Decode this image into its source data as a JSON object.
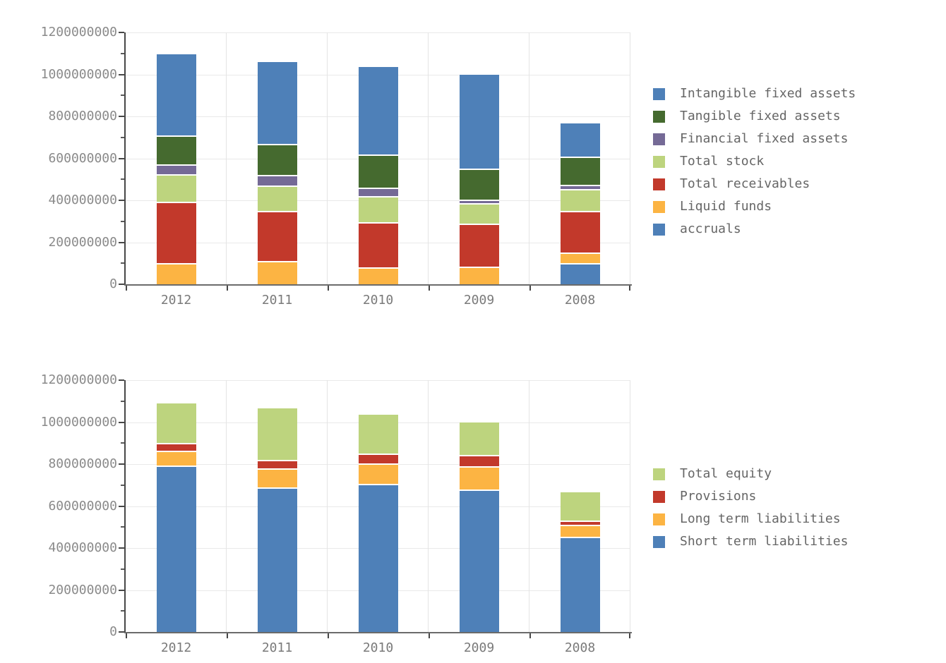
{
  "page": {
    "background": "#ffffff"
  },
  "colors": {
    "blue": "#4e80b8",
    "dark_green": "#456a2f",
    "purple": "#756a96",
    "light_green": "#bdd47e",
    "red": "#c2392b",
    "orange": "#fcb443",
    "grid": "#e9e9e9",
    "axis": "#474747",
    "tick_label": "#8a8a8a",
    "legend_text": "#666666"
  },
  "y_axis": {
    "min": 0,
    "max": 1200000000,
    "major_step": 200000000,
    "minor_step": 100000000,
    "tick_labels": [
      "1200000000",
      "1000000000",
      "800000000",
      "600000000",
      "400000000",
      "200000000",
      "0"
    ]
  },
  "chart_data": [
    {
      "type": "bar",
      "stacked": true,
      "title": "",
      "xlabel": "",
      "ylabel": "",
      "ylim": [
        0,
        1200000000
      ],
      "grid": true,
      "legend_position": "right",
      "categories": [
        "2012",
        "2011",
        "2010",
        "2009",
        "2008"
      ],
      "series": [
        {
          "name": "Intangible fixed assets",
          "color": "#4e80b8",
          "values": [
            385000000,
            390000000,
            415000000,
            450000000,
            155000000
          ]
        },
        {
          "name": "Tangible fixed assets",
          "color": "#456a2f",
          "values": [
            140000000,
            150000000,
            160000000,
            145000000,
            135000000
          ]
        },
        {
          "name": "Financial fixed assets",
          "color": "#756a96",
          "values": [
            45000000,
            50000000,
            40000000,
            20000000,
            20000000
          ]
        },
        {
          "name": "Total stock",
          "color": "#bdd47e",
          "values": [
            130000000,
            120000000,
            125000000,
            95000000,
            105000000
          ]
        },
        {
          "name": "Total receivables",
          "color": "#c2392b",
          "values": [
            295000000,
            240000000,
            215000000,
            205000000,
            200000000
          ]
        },
        {
          "name": "Liquid funds",
          "color": "#fcb443",
          "values": [
            100000000,
            110000000,
            80000000,
            85000000,
            50000000
          ]
        },
        {
          "name": "accruals",
          "color": "#4e80b8",
          "values": [
            0,
            0,
            0,
            0,
            100000000
          ]
        }
      ],
      "stack_note": "first series renders at top of stack; stacking bottom-to-top is reverse of series order"
    },
    {
      "type": "bar",
      "stacked": true,
      "title": "",
      "xlabel": "",
      "ylabel": "",
      "ylim": [
        0,
        1200000000
      ],
      "grid": true,
      "legend_position": "right",
      "categories": [
        "2012",
        "2011",
        "2010",
        "2009",
        "2008"
      ],
      "series": [
        {
          "name": "Total equity",
          "color": "#bdd47e",
          "values": [
            190000000,
            245000000,
            185000000,
            155000000,
            135000000
          ]
        },
        {
          "name": "Provisions",
          "color": "#c2392b",
          "values": [
            35000000,
            40000000,
            45000000,
            55000000,
            20000000
          ]
        },
        {
          "name": "Long term liabilities",
          "color": "#fcb443",
          "values": [
            70000000,
            90000000,
            100000000,
            110000000,
            55000000
          ]
        },
        {
          "name": "Short term liabilities",
          "color": "#4e80b8",
          "values": [
            795000000,
            690000000,
            705000000,
            680000000,
            455000000
          ]
        }
      ],
      "stack_note": "first series renders at top of stack; stacking bottom-to-top is reverse of series order"
    }
  ]
}
